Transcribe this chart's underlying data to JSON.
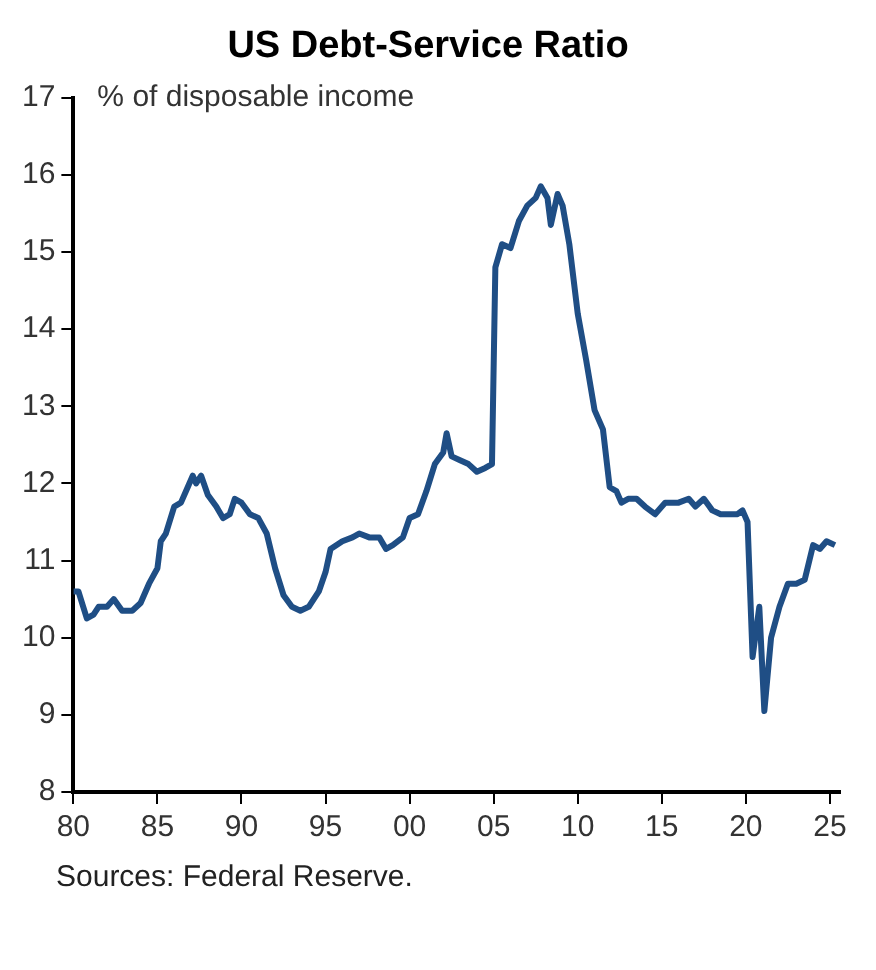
{
  "chart_data": {
    "type": "line",
    "title": "US Debt-Service Ratio",
    "ylabel": "% of disposable income",
    "annotations": [
      "Sources: Federal Reserve."
    ],
    "x": [
      1980,
      1980.3,
      1980.8,
      1981.2,
      1981.5,
      1982,
      1982.4,
      1982.9,
      1983.5,
      1984,
      1984.5,
      1985,
      1985.2,
      1985.5,
      1986,
      1986.4,
      1986.8,
      1987.1,
      1987.3,
      1987.6,
      1988,
      1988.5,
      1988.9,
      1989.3,
      1989.6,
      1990,
      1990.5,
      1991,
      1991.5,
      1992,
      1992.5,
      1993,
      1993.5,
      1994,
      1994.6,
      1995,
      1995.3,
      1996,
      1996.6,
      1997,
      1997.6,
      1998.2,
      1998.6,
      1999,
      1999.6,
      2000,
      2000.5,
      2001,
      2001.5,
      2002,
      2002.2,
      2002.5,
      2003,
      2003.5,
      2004,
      2004.5,
      2004.9,
      2005.1,
      2005.5,
      2006,
      2006.5,
      2007,
      2007.5,
      2007.8,
      2008.2,
      2008.4,
      2008.8,
      2009.1,
      2009.5,
      2010,
      2010.5,
      2011,
      2011.5,
      2011.9,
      2012.3,
      2012.6,
      2013,
      2013.5,
      2014,
      2014.6,
      2015.2,
      2016,
      2016.6,
      2017,
      2017.5,
      2018,
      2018.5,
      2019,
      2019.5,
      2019.8,
      2020.1,
      2020.4,
      2020.8,
      2021.1,
      2021.5,
      2022,
      2022.5,
      2023,
      2023.5,
      2024,
      2024.4,
      2024.8,
      2025.3
    ],
    "series": [
      {
        "color": "#1f4e85",
        "values": [
          10.6,
          10.6,
          10.25,
          10.3,
          10.4,
          10.4,
          10.5,
          10.35,
          10.35,
          10.45,
          10.7,
          10.9,
          11.25,
          11.35,
          11.7,
          11.75,
          11.95,
          12.1,
          12.0,
          12.1,
          11.85,
          11.7,
          11.55,
          11.6,
          11.8,
          11.75,
          11.6,
          11.55,
          11.35,
          10.9,
          10.55,
          10.4,
          10.35,
          10.4,
          10.6,
          10.85,
          11.15,
          11.25,
          11.3,
          11.35,
          11.3,
          11.3,
          11.15,
          11.2,
          11.3,
          11.55,
          11.6,
          11.9,
          12.25,
          12.4,
          12.65,
          12.35,
          12.3,
          12.25,
          12.15,
          12.2,
          12.25,
          14.8,
          15.1,
          15.05,
          15.4,
          15.6,
          15.7,
          15.85,
          15.7,
          15.35,
          15.75,
          15.6,
          15.1,
          14.2,
          13.6,
          12.95,
          12.7,
          11.95,
          11.9,
          11.75,
          11.8,
          11.8,
          11.7,
          11.6,
          11.75,
          11.75,
          11.8,
          11.7,
          11.8,
          11.65,
          11.6,
          11.6,
          11.6,
          11.65,
          11.5,
          9.75,
          10.4,
          9.05,
          10.0,
          10.4,
          10.7,
          10.7,
          10.75,
          11.2,
          11.15,
          11.25,
          11.2
        ]
      }
    ],
    "xlim": [
      1980,
      2025.6
    ],
    "xticks": [
      {
        "value": 1980,
        "label": "80"
      },
      {
        "value": 1985,
        "label": "85"
      },
      {
        "value": 1990,
        "label": "90"
      },
      {
        "value": 1995,
        "label": "95"
      },
      {
        "value": 2000,
        "label": "00"
      },
      {
        "value": 2005,
        "label": "05"
      },
      {
        "value": 2010,
        "label": "10"
      },
      {
        "value": 2015,
        "label": "15"
      },
      {
        "value": 2020,
        "label": "20"
      },
      {
        "value": 2025,
        "label": "25"
      }
    ],
    "ylim": [
      8,
      17
    ],
    "yticks": [
      8,
      9,
      10,
      11,
      12,
      13,
      14,
      15,
      16,
      17
    ],
    "legend": false
  }
}
